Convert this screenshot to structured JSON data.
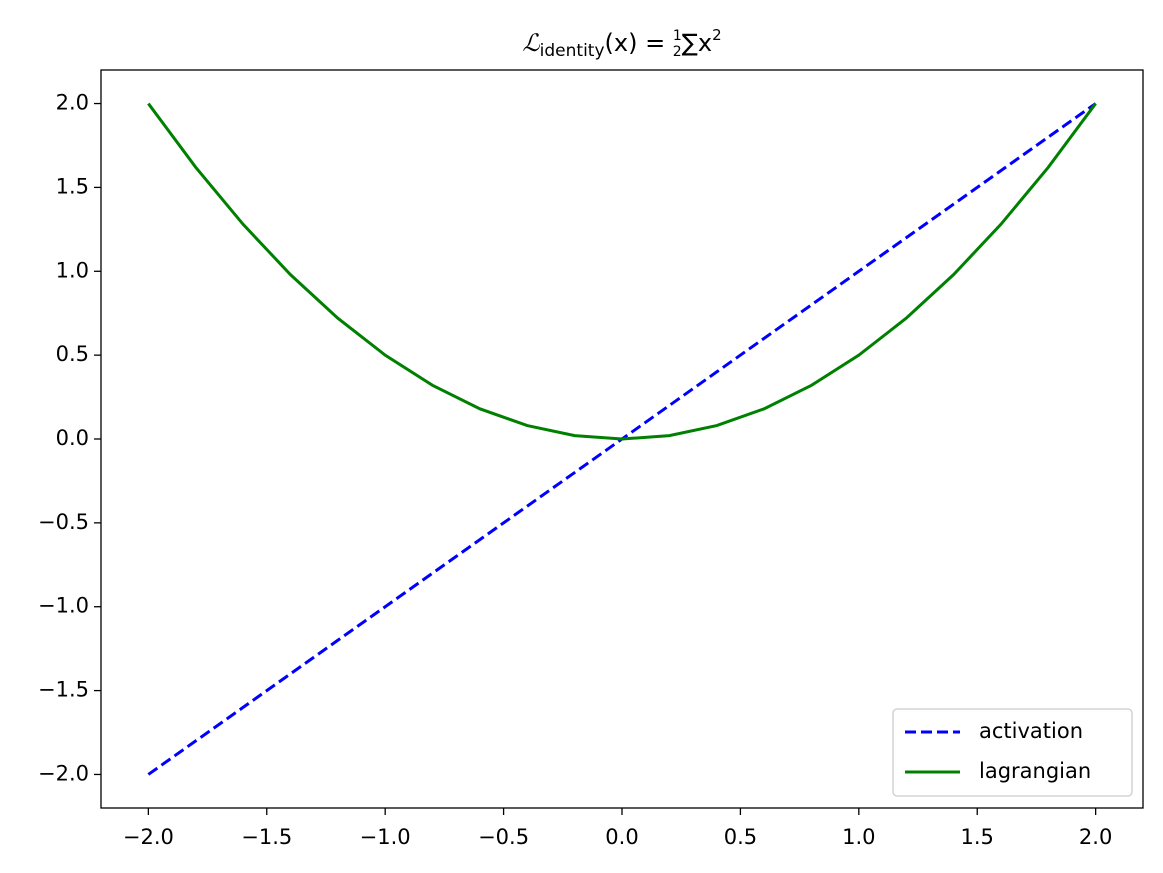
{
  "chart_data": {
    "type": "line",
    "title": {
      "symbol": "ℒ",
      "subscript": "identity",
      "middle": "(x) = ",
      "numerator": "1",
      "denominator": "2",
      "sum": "∑x",
      "superscript": "2"
    },
    "x": [
      -2,
      -1.8,
      -1.6,
      -1.4,
      -1.2,
      -1,
      -0.8,
      -0.6,
      -0.4,
      -0.2,
      0,
      0.2,
      0.4,
      0.6,
      0.8,
      1,
      1.2,
      1.4,
      1.6,
      1.8,
      2
    ],
    "series": [
      {
        "name": "activation",
        "color": "#0000ff",
        "linestyle": "dashed",
        "values": [
          -2,
          -1.8,
          -1.6,
          -1.4,
          -1.2,
          -1,
          -0.8,
          -0.6,
          -0.4,
          -0.2,
          0,
          0.2,
          0.4,
          0.6,
          0.8,
          1,
          1.2,
          1.4,
          1.6,
          1.8,
          2
        ]
      },
      {
        "name": "lagrangian",
        "color": "#008000",
        "linestyle": "solid",
        "values": [
          2,
          1.62,
          1.28,
          0.98,
          0.72,
          0.5,
          0.32,
          0.18,
          0.08,
          0.02,
          0,
          0.02,
          0.08,
          0.18,
          0.32,
          0.5,
          0.72,
          0.98,
          1.28,
          1.62,
          2
        ]
      }
    ],
    "xlim": [
      -2.2,
      2.2
    ],
    "ylim": [
      -2.2,
      2.2
    ],
    "xticks": [
      {
        "value": -2,
        "label": "−2.0"
      },
      {
        "value": -1.5,
        "label": "−1.5"
      },
      {
        "value": -1,
        "label": "−1.0"
      },
      {
        "value": -0.5,
        "label": "−0.5"
      },
      {
        "value": 0,
        "label": "0.0"
      },
      {
        "value": 0.5,
        "label": "0.5"
      },
      {
        "value": 1,
        "label": "1.0"
      },
      {
        "value": 1.5,
        "label": "1.5"
      },
      {
        "value": 2,
        "label": "2.0"
      }
    ],
    "yticks": [
      {
        "value": -2,
        "label": "−2.0"
      },
      {
        "value": -1.5,
        "label": "−1.5"
      },
      {
        "value": -1,
        "label": "−1.0"
      },
      {
        "value": -0.5,
        "label": "−0.5"
      },
      {
        "value": 0,
        "label": "0.0"
      },
      {
        "value": 0.5,
        "label": "0.5"
      },
      {
        "value": 1,
        "label": "1.0"
      },
      {
        "value": 1.5,
        "label": "1.5"
      },
      {
        "value": 2,
        "label": "2.0"
      }
    ],
    "grid": false,
    "legend": "lower right"
  }
}
